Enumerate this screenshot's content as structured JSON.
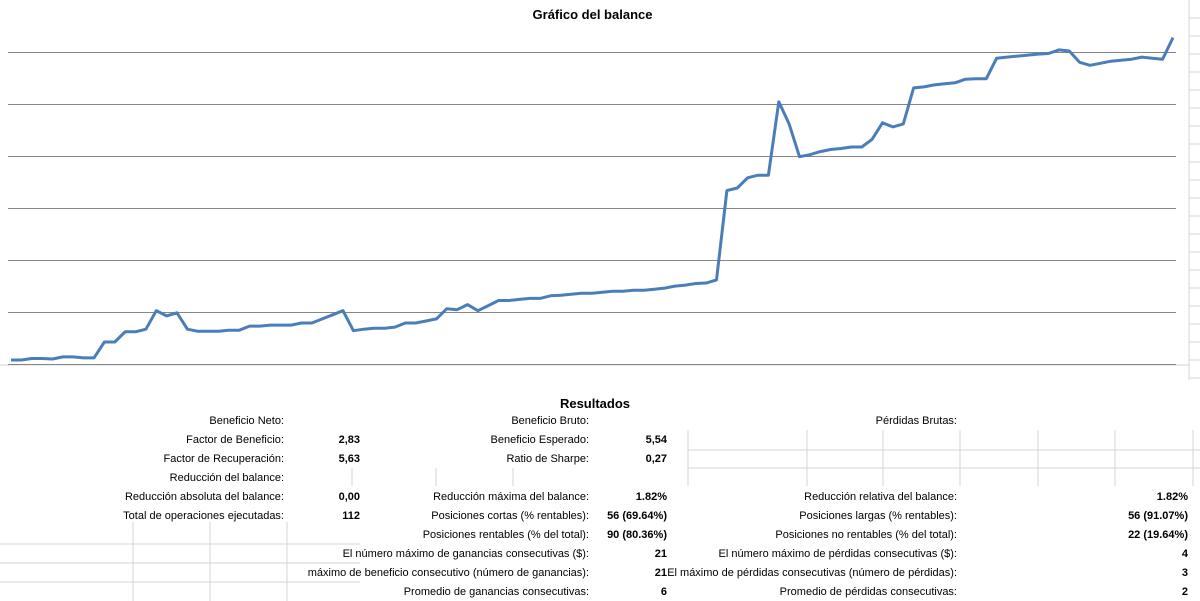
{
  "chart_data": {
    "type": "line",
    "title": "Gráfico del balance",
    "grid": true,
    "legend": "none",
    "line_color": "#4a7ebb",
    "grid_color": "#868686",
    "series": [
      {
        "x": [
          0,
          1,
          2,
          3,
          4,
          5,
          6,
          7,
          8,
          9,
          10,
          11,
          12,
          13,
          14,
          15,
          16,
          17,
          18,
          19,
          20,
          21,
          22,
          23,
          24,
          25,
          26,
          27,
          28,
          29,
          30,
          31,
          32,
          33,
          34,
          35,
          36,
          37,
          38,
          39,
          40,
          41,
          42,
          43,
          44,
          45,
          46,
          47,
          48,
          49,
          50,
          51,
          52,
          53,
          54,
          55,
          56,
          57,
          58,
          59,
          60,
          61,
          62,
          63,
          64,
          65,
          66,
          67,
          68,
          69,
          70,
          71,
          72,
          73,
          74,
          75,
          76,
          77,
          78,
          79,
          80,
          81,
          82,
          83,
          84,
          85,
          86,
          87,
          88,
          89,
          90,
          91,
          92,
          93,
          94,
          95,
          96,
          97,
          98,
          99,
          100,
          101,
          102,
          103,
          104,
          105,
          106,
          107,
          108,
          109,
          110,
          111,
          112
        ],
        "values": [
          0.0,
          0.0,
          0.03,
          0.03,
          0.02,
          0.06,
          0.06,
          0.04,
          0.04,
          0.35,
          0.35,
          0.55,
          0.55,
          0.6,
          0.96,
          0.86,
          0.92,
          0.6,
          0.56,
          0.56,
          0.56,
          0.58,
          0.58,
          0.66,
          0.66,
          0.68,
          0.68,
          0.68,
          0.72,
          0.72,
          0.8,
          0.88,
          0.96,
          0.57,
          0.6,
          0.62,
          0.62,
          0.64,
          0.72,
          0.72,
          0.76,
          0.8,
          1.0,
          0.98,
          1.08,
          0.96,
          1.06,
          1.16,
          1.16,
          1.18,
          1.2,
          1.2,
          1.25,
          1.26,
          1.28,
          1.3,
          1.3,
          1.32,
          1.34,
          1.34,
          1.36,
          1.36,
          1.38,
          1.4,
          1.44,
          1.46,
          1.49,
          1.5,
          1.56,
          3.3,
          3.35,
          3.55,
          3.6,
          3.6,
          5.03,
          4.6,
          3.96,
          4.0,
          4.06,
          4.1,
          4.12,
          4.15,
          4.15,
          4.3,
          4.62,
          4.54,
          4.6,
          5.3,
          5.32,
          5.36,
          5.38,
          5.4,
          5.47,
          5.48,
          5.48,
          5.88,
          5.9,
          5.92,
          5.94,
          5.96,
          5.97,
          6.04,
          6.02,
          5.8,
          5.74,
          5.78,
          5.82,
          5.84,
          5.86,
          5.9,
          5.88,
          5.86,
          6.28
        ]
      }
    ]
  },
  "results": {
    "title": "Resultados",
    "rows": [
      {
        "c1": {
          "label": "Beneficio Neto:",
          "value": ""
        },
        "c2": {
          "label": "Beneficio Bruto:",
          "value": ""
        },
        "c3": {
          "label": "Pérdidas Brutas:",
          "value": ""
        }
      },
      {
        "c1": {
          "label": "Factor de Beneficio:",
          "value": "2,83"
        },
        "c2": {
          "label": "Beneficio Esperado:",
          "value": "5,54"
        },
        "c3": {
          "label": "",
          "value": ""
        }
      },
      {
        "c1": {
          "label": "Factor de Recuperación:",
          "value": "5,63"
        },
        "c2": {
          "label": "Ratio de Sharpe:",
          "value": "0,27"
        },
        "c3": {
          "label": "",
          "value": ""
        }
      },
      {
        "c1": {
          "label": "Reducción del balance:",
          "value": ""
        },
        "c2": {
          "label": "",
          "value": ""
        },
        "c3": {
          "label": "",
          "value": ""
        }
      },
      {
        "c1": {
          "label": "Reducción absoluta del balance:",
          "value": "0,00"
        },
        "c2": {
          "label": "Reducción máxima del balance:",
          "value": "1.82%"
        },
        "c3": {
          "label": "Reducción relativa del balance:",
          "value": "1.82%"
        }
      },
      {
        "c1": {
          "label": "Total de operaciones ejecutadas:",
          "value": "112"
        },
        "c2": {
          "label": "Posiciones cortas (% rentables):",
          "value": "56 (69.64%)"
        },
        "c3": {
          "label": "Posiciones largas (% rentables):",
          "value": "56 (91.07%)"
        }
      },
      {
        "c1": {
          "label": "",
          "value": ""
        },
        "c2": {
          "label": "Posiciones rentables (% del total):",
          "value": "90 (80.36%)"
        },
        "c3": {
          "label": "Posiciones no rentables (% del total):",
          "value": "22 (19.64%)"
        }
      },
      {
        "c1": {
          "label": "",
          "value": ""
        },
        "c2": {
          "label": "El número máximo de ganancias consecutivas ($):",
          "value": "21"
        },
        "c3": {
          "label": "El número máximo de pérdidas consecutivas ($):",
          "value": "4"
        }
      },
      {
        "c1": {
          "label": "",
          "value": ""
        },
        "c2": {
          "label": "máximo de beneficio consecutivo (número de ganancias):",
          "value": "21"
        },
        "c3": {
          "label": "El máximo de pérdidas consecutivas (número de pérdidas):",
          "value": "3"
        }
      },
      {
        "c1": {
          "label": "",
          "value": ""
        },
        "c2": {
          "label": "Promedio de ganancias consecutivas:",
          "value": "6"
        },
        "c3": {
          "label": "Promedio de pérdidas consecutivas:",
          "value": "2"
        }
      }
    ]
  }
}
